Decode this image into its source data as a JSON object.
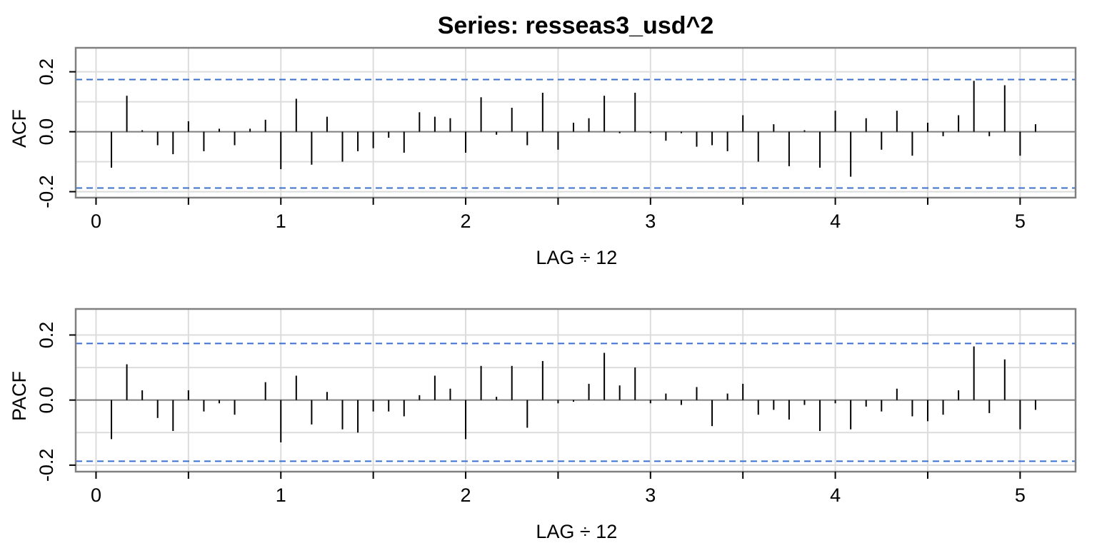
{
  "title": "Series:  resseas3_usd^2",
  "chart_data": [
    {
      "type": "bar",
      "name": "ACF",
      "ylabel": "ACF",
      "xlabel": "LAG ÷ 12",
      "xlim": [
        -0.11,
        5.3
      ],
      "ylim": [
        -0.22,
        0.28
      ],
      "x_ticks": [
        0,
        1,
        2,
        3,
        4,
        5
      ],
      "y_ticks": [
        -0.2,
        0.0,
        0.2
      ],
      "y_tick_labels": [
        "-0.2",
        "0.0",
        "0.2"
      ],
      "ci": [
        0.174,
        -0.188
      ],
      "grid": true,
      "lag_step": 0.0833333,
      "values": [
        -0.12,
        0.12,
        0.005,
        -0.045,
        -0.075,
        0.035,
        -0.065,
        0.01,
        -0.045,
        0.01,
        0.04,
        -0.125,
        0.11,
        -0.11,
        0.05,
        -0.1,
        -0.065,
        -0.055,
        -0.02,
        -0.07,
        0.065,
        0.05,
        0.045,
        -0.07,
        0.115,
        -0.01,
        0.08,
        -0.045,
        0.13,
        -0.06,
        0.03,
        0.045,
        0.12,
        -0.005,
        0.13,
        -0.005,
        -0.03,
        -0.005,
        -0.05,
        -0.045,
        -0.065,
        0.055,
        -0.1,
        0.025,
        -0.115,
        0.005,
        -0.12,
        0.07,
        -0.15,
        0.045,
        -0.06,
        0.07,
        -0.08,
        0.03,
        -0.015,
        0.055,
        0.17,
        -0.015,
        0.155,
        -0.08,
        0.025
      ]
    },
    {
      "type": "bar",
      "name": "PACF",
      "ylabel": "PACF",
      "xlabel": "LAG ÷ 12",
      "xlim": [
        -0.11,
        5.3
      ],
      "ylim": [
        -0.22,
        0.28
      ],
      "x_ticks": [
        0,
        1,
        2,
        3,
        4,
        5
      ],
      "y_ticks": [
        -0.2,
        0.0,
        0.2
      ],
      "y_tick_labels": [
        "-0.2",
        "0.0",
        "0.2"
      ],
      "ci": [
        0.174,
        -0.188
      ],
      "grid": true,
      "lag_step": 0.0833333,
      "values": [
        -0.12,
        0.11,
        0.03,
        -0.055,
        -0.095,
        0.03,
        -0.035,
        -0.01,
        -0.045,
        0.0,
        0.055,
        -0.13,
        0.075,
        -0.075,
        0.025,
        -0.09,
        -0.1,
        -0.035,
        -0.035,
        -0.05,
        0.015,
        0.075,
        0.035,
        -0.12,
        0.105,
        0.01,
        0.105,
        -0.085,
        0.12,
        -0.01,
        -0.005,
        0.05,
        0.145,
        0.045,
        0.1,
        -0.01,
        0.02,
        -0.015,
        0.04,
        -0.08,
        0.02,
        0.05,
        -0.045,
        -0.03,
        -0.06,
        -0.015,
        -0.095,
        -0.01,
        -0.09,
        -0.02,
        -0.035,
        0.035,
        -0.05,
        -0.065,
        -0.045,
        0.03,
        0.165,
        -0.04,
        0.125,
        -0.09,
        -0.03
      ]
    }
  ]
}
